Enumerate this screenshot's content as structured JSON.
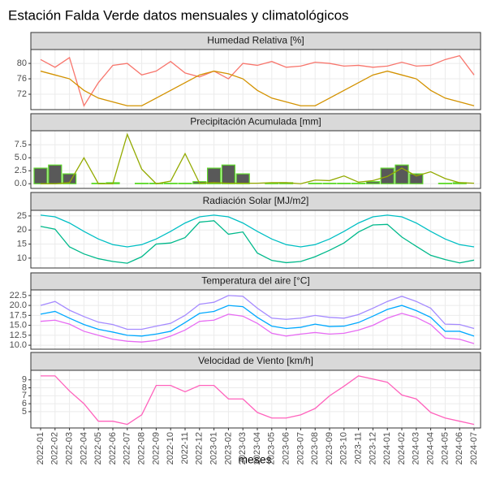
{
  "title": "Estación Falda Verde datos mensuales y climatológicos",
  "xlabel": "meses",
  "categories": [
    "2022-01",
    "2022-02",
    "2022-03",
    "2022-04",
    "2022-05",
    "2022-06",
    "2022-07",
    "2022-08",
    "2022-09",
    "2022-10",
    "2022-11",
    "2022-12",
    "2023-01",
    "2023-02",
    "2023-03",
    "2023-04",
    "2023-05",
    "2023-06",
    "2023-07",
    "2023-08",
    "2023-09",
    "2023-10",
    "2023-11",
    "2023-12",
    "2024-01",
    "2024-02",
    "2024-03",
    "2024-04",
    "2024-05",
    "2024-06",
    "2024-07"
  ],
  "chart_data": [
    {
      "type": "line",
      "title": "Humedad Relativa [%]",
      "ylim": [
        68,
        83.6
      ],
      "yticks": [
        72,
        76,
        80
      ],
      "grid": true,
      "series": [
        {
          "color": "#f8766d",
          "values": [
            81,
            79,
            81.5,
            69,
            75,
            79.5,
            80,
            77,
            78,
            80.5,
            77.5,
            76.5,
            78,
            76,
            80,
            79.5,
            80.5,
            79,
            79.3,
            80.3,
            80,
            79.3,
            79.5,
            79,
            79.3,
            80.3,
            79.3,
            79.5,
            81,
            82,
            77
          ]
        },
        {
          "color": "#d39200",
          "values": [
            78,
            77,
            76,
            73,
            71,
            70,
            69,
            69,
            71,
            73,
            75,
            77,
            78,
            77.3,
            76,
            73,
            71,
            70,
            69,
            69,
            71,
            73,
            75,
            77,
            78,
            77,
            76,
            73,
            71,
            70,
            69
          ]
        }
      ]
    },
    {
      "type": "line",
      "title": "Precipitación Acumulada [mm]",
      "ylim": [
        -0.9,
        10.2
      ],
      "yticks": [
        {
          "value": 0,
          "label": "0.0"
        },
        2.5,
        {
          "value": 5,
          "label": "5.0"
        },
        7.5
      ],
      "grid": true,
      "series": [
        {
          "type": "bar",
          "color": "#595959",
          "edgecolor": "#5fd92b",
          "values": [
            3,
            3.6,
            1.9,
            0,
            0.1,
            0.2,
            0,
            0.1,
            0.1,
            0.1,
            0.1,
            0.4,
            3,
            3.6,
            1.9,
            0,
            0.1,
            0.2,
            0,
            0.1,
            0.1,
            0.1,
            0.1,
            0.4,
            3,
            3.6,
            1.9,
            0,
            0.1,
            0.2,
            0
          ]
        },
        {
          "color": "#93aa00",
          "values": [
            0,
            0,
            0.2,
            5,
            0,
            0,
            9.5,
            2.8,
            0,
            0.5,
            5.8,
            0.1,
            0.2,
            0.1,
            0.1,
            0.1,
            0.2,
            0.2,
            0,
            0.7,
            0.6,
            1.5,
            0.3,
            0.6,
            1.4,
            3,
            1.5,
            2.3,
            1,
            0.2,
            0.1
          ]
        }
      ]
    },
    {
      "type": "line",
      "title": "Radiación Solar [MJ/m2]",
      "ylim": [
        6.5,
        27
      ],
      "yticks": [
        10,
        15,
        20,
        25
      ],
      "grid": true,
      "series": [
        {
          "color": "#00bfc4",
          "values": [
            25.3,
            24.7,
            22.5,
            19.5,
            16.8,
            14.8,
            14,
            14.8,
            16.8,
            19.5,
            22.5,
            24.7,
            25.3,
            24.7,
            22.5,
            19.5,
            16.8,
            14.8,
            14,
            14.8,
            16.8,
            19.5,
            22.5,
            24.7,
            25.3,
            24.7,
            22.5,
            19.5,
            16.8,
            14.8,
            14
          ]
        },
        {
          "color": "#00b98b",
          "values": [
            21.3,
            20.3,
            14,
            11.5,
            9.8,
            8.8,
            8.2,
            10.5,
            15,
            15.4,
            17.3,
            22.8,
            23.3,
            18.5,
            19.3,
            11.8,
            9.2,
            8.4,
            8.8,
            10.5,
            12.8,
            15.4,
            19.3,
            21.8,
            22,
            17.5,
            14.2,
            11,
            9.5,
            8.3,
            9.3
          ]
        }
      ]
    },
    {
      "type": "line",
      "title": "Temperatura del aire [°C]",
      "ylim": [
        9,
        23.9
      ],
      "yticks": [
        {
          "value": 10,
          "label": "10.0"
        },
        12.5,
        {
          "value": 15,
          "label": "15.0"
        },
        17.5,
        {
          "value": 20,
          "label": "20.0"
        },
        22.5
      ],
      "grid": true,
      "series": [
        {
          "color": "#a58aff",
          "values": [
            20,
            21,
            18.8,
            17.2,
            15.8,
            15.2,
            14,
            14,
            14.8,
            15.5,
            17.5,
            20.3,
            20.8,
            22.5,
            22.3,
            19.3,
            16.8,
            16.5,
            16.8,
            17.5,
            17,
            16.8,
            17.7,
            19.3,
            21,
            22.3,
            21,
            19.3,
            15.3,
            15.2,
            14.2
          ]
        },
        {
          "color": "#00a9ff",
          "values": [
            17.8,
            18.5,
            16.8,
            15.2,
            14,
            13.3,
            12.5,
            12.3,
            12.8,
            13.5,
            15.7,
            18,
            18.5,
            20,
            19.7,
            17,
            14.8,
            14.2,
            14.5,
            15.3,
            14.7,
            14.8,
            15.7,
            17.3,
            19,
            20,
            18.7,
            17,
            13.5,
            13.5,
            12.3
          ]
        },
        {
          "color": "#e76bf3",
          "values": [
            16,
            16.3,
            15.3,
            13.5,
            12.5,
            11.5,
            11,
            10.8,
            11.2,
            12.3,
            13.8,
            16,
            16.3,
            17.8,
            17.3,
            15.5,
            13,
            12.3,
            12.8,
            13.2,
            12.8,
            13,
            13.8,
            15,
            16.8,
            18,
            17,
            15.2,
            11.8,
            11.5,
            10.4
          ]
        }
      ]
    },
    {
      "type": "line",
      "title": "Velocidad de Viento [km/h]",
      "ylim": [
        2.95,
        10.2
      ],
      "yticks": [
        5,
        6,
        7,
        8,
        9
      ],
      "grid": true,
      "series": [
        {
          "color": "#ff62bc",
          "values": [
            9.5,
            9.5,
            7.6,
            6,
            3.8,
            3.8,
            3.4,
            4.6,
            8.3,
            8.3,
            7.5,
            8.3,
            8.3,
            6.6,
            6.6,
            4.9,
            4.2,
            4.2,
            4.6,
            5.4,
            7,
            8.2,
            9.5,
            9.1,
            8.7,
            7.1,
            6.6,
            4.9,
            4.2,
            3.8,
            3.4
          ]
        }
      ]
    }
  ]
}
